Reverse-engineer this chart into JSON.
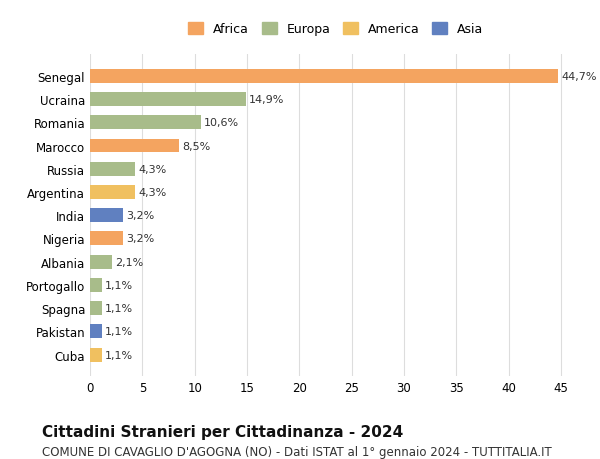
{
  "countries": [
    "Senegal",
    "Ucraina",
    "Romania",
    "Marocco",
    "Russia",
    "Argentina",
    "India",
    "Nigeria",
    "Albania",
    "Portogallo",
    "Spagna",
    "Pakistan",
    "Cuba"
  ],
  "values": [
    44.7,
    14.9,
    10.6,
    8.5,
    4.3,
    4.3,
    3.2,
    3.2,
    2.1,
    1.1,
    1.1,
    1.1,
    1.1
  ],
  "labels": [
    "44,7%",
    "14,9%",
    "10,6%",
    "8,5%",
    "4,3%",
    "4,3%",
    "3,2%",
    "3,2%",
    "2,1%",
    "1,1%",
    "1,1%",
    "1,1%",
    "1,1%"
  ],
  "continents": [
    "Africa",
    "Europa",
    "Europa",
    "Africa",
    "Europa",
    "America",
    "Asia",
    "Africa",
    "Europa",
    "Europa",
    "Europa",
    "Asia",
    "America"
  ],
  "continent_colors": {
    "Africa": "#F4A460",
    "Europa": "#A8BC8A",
    "America": "#F0C060",
    "Asia": "#6080C0"
  },
  "legend_order": [
    "Africa",
    "Europa",
    "America",
    "Asia"
  ],
  "title": "Cittadini Stranieri per Cittadinanza - 2024",
  "subtitle": "COMUNE DI CAVAGLIO D'AGOGNA (NO) - Dati ISTAT al 1° gennaio 2024 - TUTTITALIA.IT",
  "xlim": [
    0,
    47
  ],
  "xticks": [
    0,
    5,
    10,
    15,
    20,
    25,
    30,
    35,
    40,
    45
  ],
  "bg_color": "#FFFFFF",
  "grid_color": "#DDDDDD",
  "bar_height": 0.6,
  "label_fontsize": 8,
  "title_fontsize": 11,
  "subtitle_fontsize": 8.5
}
